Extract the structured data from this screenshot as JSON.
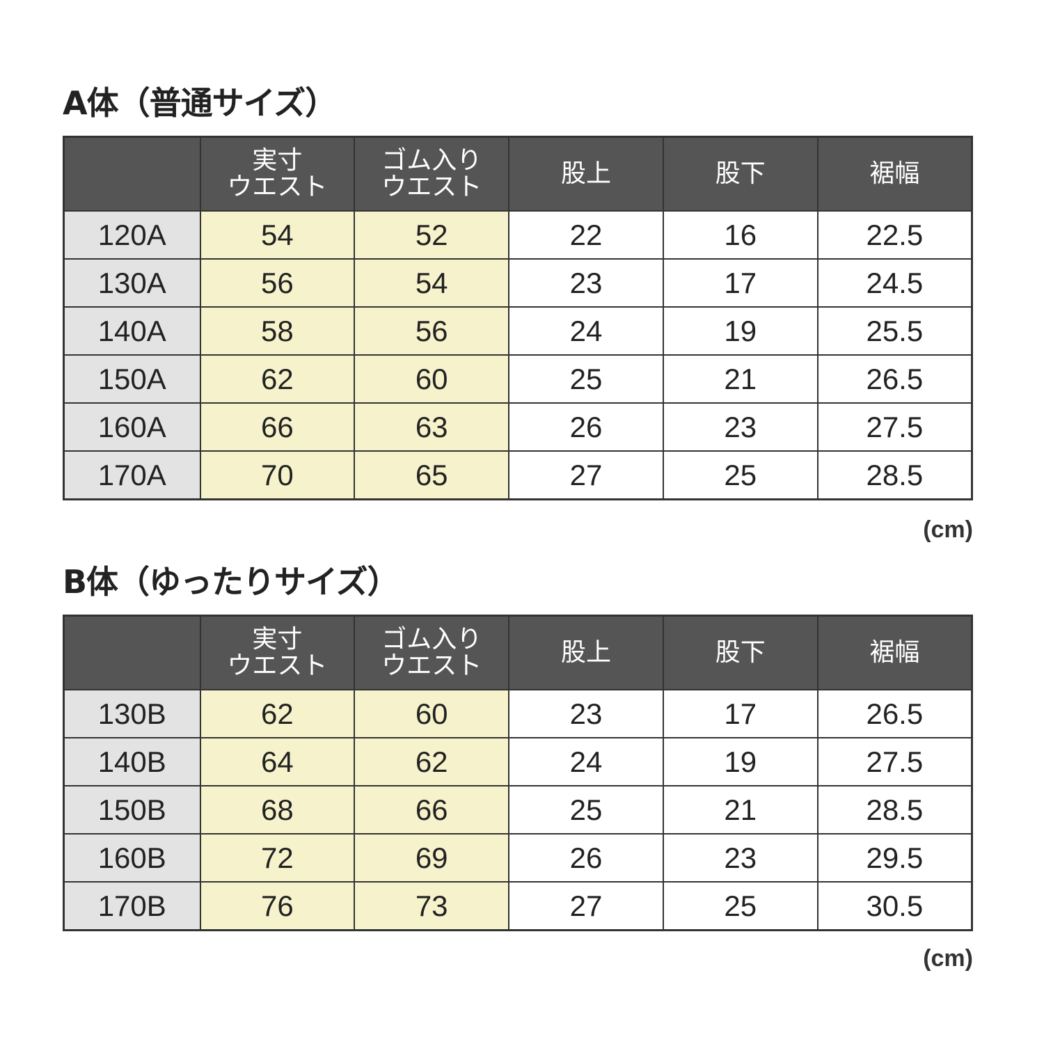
{
  "headers": [
    "",
    "実寸\nウエスト",
    "ゴム入り\nウエスト",
    "股上",
    "股下",
    "裾幅"
  ],
  "tables": [
    {
      "title": "A体（普通サイズ）",
      "unit": "(cm)",
      "rows": [
        [
          "120A",
          "54",
          "52",
          "22",
          "16",
          "22.5"
        ],
        [
          "130A",
          "56",
          "54",
          "23",
          "17",
          "24.5"
        ],
        [
          "140A",
          "58",
          "56",
          "24",
          "19",
          "25.5"
        ],
        [
          "150A",
          "62",
          "60",
          "25",
          "21",
          "26.5"
        ],
        [
          "160A",
          "66",
          "63",
          "26",
          "23",
          "27.5"
        ],
        [
          "170A",
          "70",
          "65",
          "27",
          "25",
          "28.5"
        ]
      ]
    },
    {
      "title": "B体（ゆったりサイズ）",
      "unit": "(cm)",
      "rows": [
        [
          "130B",
          "62",
          "60",
          "23",
          "17",
          "26.5"
        ],
        [
          "140B",
          "64",
          "62",
          "24",
          "19",
          "27.5"
        ],
        [
          "150B",
          "68",
          "66",
          "25",
          "21",
          "28.5"
        ],
        [
          "160B",
          "72",
          "69",
          "26",
          "23",
          "29.5"
        ],
        [
          "170B",
          "76",
          "73",
          "27",
          "25",
          "30.5"
        ]
      ]
    }
  ],
  "colors": {
    "header_bg": "#555555",
    "size_col_bg": "#e3e3e3",
    "waist_col_bg": "#f6f3cc",
    "border": "#333333"
  }
}
